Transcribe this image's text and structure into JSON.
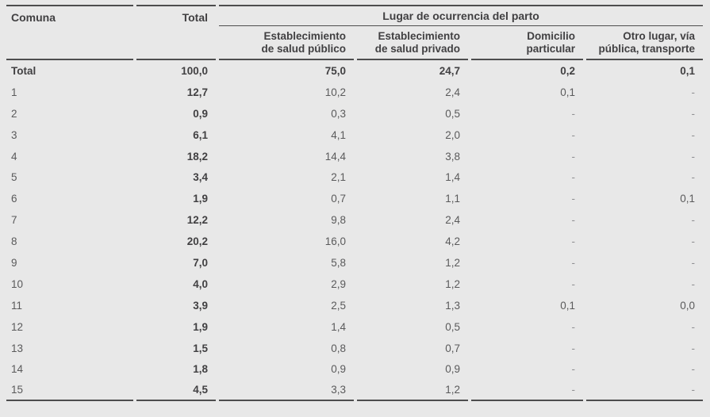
{
  "colors": {
    "background": "#e8e8e8",
    "ink": "#414042",
    "muted": "#5a5a5b",
    "faint": "#909093",
    "line": "#4d4d4e"
  },
  "table": {
    "col_headers": {
      "comuna": "Comuna",
      "total": "Total"
    },
    "group_header": "Lugar de ocurrencia del parto",
    "subheaders": [
      {
        "line1": "Establecimiento",
        "line2": "de salud público"
      },
      {
        "line1": "Establecimiento",
        "line2": "de salud privado"
      },
      {
        "line1": "Domicilio",
        "line2": "particular"
      },
      {
        "line1": "Otro lugar, vía",
        "line2": "pública, transporte"
      }
    ],
    "rows": [
      {
        "label": "Total",
        "total": "100,0",
        "publico": "75,0",
        "privado": "24,7",
        "domicilio": "0,2",
        "otro": "0,1",
        "bold": true
      },
      {
        "label": "1",
        "total": "12,7",
        "publico": "10,2",
        "privado": "2,4",
        "domicilio": "0,1",
        "otro": "-",
        "bold": false
      },
      {
        "label": "2",
        "total": "0,9",
        "publico": "0,3",
        "privado": "0,5",
        "domicilio": "-",
        "otro": "-",
        "bold": false
      },
      {
        "label": "3",
        "total": "6,1",
        "publico": "4,1",
        "privado": "2,0",
        "domicilio": "-",
        "otro": "-",
        "bold": false
      },
      {
        "label": "4",
        "total": "18,2",
        "publico": "14,4",
        "privado": "3,8",
        "domicilio": "-",
        "otro": "-",
        "bold": false
      },
      {
        "label": "5",
        "total": "3,4",
        "publico": "2,1",
        "privado": "1,4",
        "domicilio": "-",
        "otro": "-",
        "bold": false
      },
      {
        "label": "6",
        "total": "1,9",
        "publico": "0,7",
        "privado": "1,1",
        "domicilio": "-",
        "otro": "0,1",
        "bold": false
      },
      {
        "label": "7",
        "total": "12,2",
        "publico": "9,8",
        "privado": "2,4",
        "domicilio": "-",
        "otro": "-",
        "bold": false
      },
      {
        "label": "8",
        "total": "20,2",
        "publico": "16,0",
        "privado": "4,2",
        "domicilio": "-",
        "otro": "-",
        "bold": false
      },
      {
        "label": "9",
        "total": "7,0",
        "publico": "5,8",
        "privado": "1,2",
        "domicilio": "-",
        "otro": "-",
        "bold": false
      },
      {
        "label": "10",
        "total": "4,0",
        "publico": "2,9",
        "privado": "1,2",
        "domicilio": "-",
        "otro": "-",
        "bold": false
      },
      {
        "label": "11",
        "total": "3,9",
        "publico": "2,5",
        "privado": "1,3",
        "domicilio": "0,1",
        "otro": "0,0",
        "bold": false
      },
      {
        "label": "12",
        "total": "1,9",
        "publico": "1,4",
        "privado": "0,5",
        "domicilio": "-",
        "otro": "-",
        "bold": false
      },
      {
        "label": "13",
        "total": "1,5",
        "publico": "0,8",
        "privado": "0,7",
        "domicilio": "-",
        "otro": "-",
        "bold": false
      },
      {
        "label": "14",
        "total": "1,8",
        "publico": "0,9",
        "privado": "0,9",
        "domicilio": "-",
        "otro": "-",
        "bold": false
      },
      {
        "label": "15",
        "total": "4,5",
        "publico": "3,3",
        "privado": "1,2",
        "domicilio": "-",
        "otro": "-",
        "bold": false
      }
    ]
  }
}
